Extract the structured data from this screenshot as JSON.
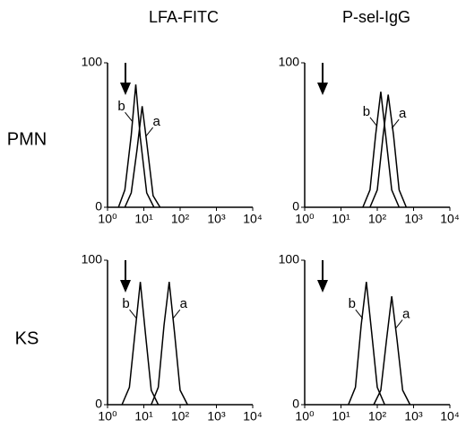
{
  "column_labels": [
    "LFA-FITC",
    "P-sel-IgG"
  ],
  "row_labels": [
    "PMN",
    "KS"
  ],
  "chart_data": [
    {
      "type": "line",
      "xscale": "log",
      "xlim": [
        1,
        10000
      ],
      "ylim": [
        0,
        100
      ],
      "xticks": [
        {
          "value": 1,
          "label": "10⁰"
        },
        {
          "value": 10,
          "label": "10¹"
        },
        {
          "value": 100,
          "label": "10²"
        },
        {
          "value": 1000,
          "label": "10³"
        },
        {
          "value": 10000,
          "label": "10⁴"
        }
      ],
      "yticks": [
        0,
        100
      ],
      "series": [
        {
          "name": "b",
          "color": "#000000",
          "x": [
            2,
            3,
            4.5,
            6,
            8,
            12,
            19
          ],
          "values": [
            0,
            12,
            50,
            85,
            48,
            10,
            0
          ]
        },
        {
          "name": "a",
          "color": "#000000",
          "x": [
            3,
            4.5,
            6.5,
            9,
            12,
            18,
            28
          ],
          "values": [
            0,
            10,
            40,
            70,
            45,
            8,
            0
          ]
        }
      ]
    },
    {
      "type": "line",
      "xscale": "log",
      "xlim": [
        1,
        10000
      ],
      "ylim": [
        0,
        100
      ],
      "xticks": [
        {
          "value": 1,
          "label": "10⁰"
        },
        {
          "value": 10,
          "label": "10¹"
        },
        {
          "value": 100,
          "label": "10²"
        },
        {
          "value": 1000,
          "label": "10³"
        },
        {
          "value": 10000,
          "label": "10⁴"
        }
      ],
      "yticks": [
        0,
        100
      ],
      "series": [
        {
          "name": "b",
          "color": "#000000",
          "x": [
            40,
            63,
            90,
            125,
            170,
            250,
            400
          ],
          "values": [
            0,
            12,
            50,
            80,
            50,
            12,
            0
          ]
        },
        {
          "name": "a",
          "color": "#000000",
          "x": [
            63,
            100,
            145,
            200,
            280,
            400,
            630
          ],
          "values": [
            0,
            12,
            50,
            78,
            50,
            12,
            0
          ]
        }
      ]
    },
    {
      "type": "line",
      "xscale": "log",
      "xlim": [
        1,
        10000
      ],
      "ylim": [
        0,
        100
      ],
      "xticks": [
        {
          "value": 1,
          "label": "10⁰"
        },
        {
          "value": 10,
          "label": "10¹"
        },
        {
          "value": 100,
          "label": "10²"
        },
        {
          "value": 1000,
          "label": "10³"
        },
        {
          "value": 10000,
          "label": "10⁴"
        }
      ],
      "yticks": [
        0,
        100
      ],
      "series": [
        {
          "name": "b",
          "color": "#000000",
          "x": [
            2.5,
            4,
            6,
            8,
            11,
            16,
            25
          ],
          "values": [
            0,
            12,
            55,
            85,
            50,
            10,
            0
          ]
        },
        {
          "name": "a",
          "color": "#000000",
          "x": [
            16,
            25,
            36,
            50,
            70,
            100,
            160
          ],
          "values": [
            0,
            12,
            55,
            85,
            50,
            10,
            0
          ]
        }
      ]
    },
    {
      "type": "line",
      "xscale": "log",
      "xlim": [
        1,
        10000
      ],
      "ylim": [
        0,
        100
      ],
      "xticks": [
        {
          "value": 1,
          "label": "10⁰"
        },
        {
          "value": 10,
          "label": "10¹"
        },
        {
          "value": 100,
          "label": "10²"
        },
        {
          "value": 1000,
          "label": "10³"
        },
        {
          "value": 10000,
          "label": "10⁴"
        }
      ],
      "yticks": [
        0,
        100
      ],
      "series": [
        {
          "name": "b",
          "color": "#000000",
          "x": [
            16,
            25,
            36,
            50,
            70,
            100,
            160
          ],
          "values": [
            0,
            12,
            55,
            85,
            50,
            12,
            0
          ]
        },
        {
          "name": "a",
          "color": "#000000",
          "x": [
            80,
            125,
            180,
            250,
            350,
            500,
            800
          ],
          "values": [
            0,
            10,
            45,
            75,
            45,
            10,
            0
          ]
        }
      ]
    }
  ]
}
